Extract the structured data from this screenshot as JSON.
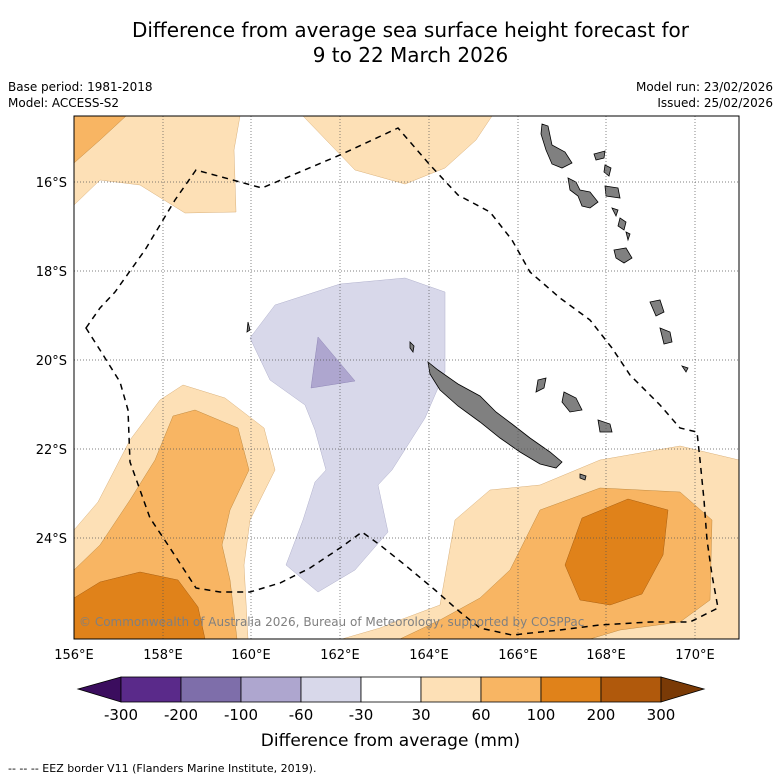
{
  "title_line1": "Difference from average sea surface height forecast for",
  "title_line2": "9 to 22 March 2026",
  "meta_left": {
    "base_period": "Base period: 1981-2018",
    "model": "Model: ACCESS-S2"
  },
  "meta_right": {
    "model_run": "Model run: 23/02/2026",
    "issued": "Issued: 25/02/2026"
  },
  "map": {
    "lon_ticks": [
      "156°E",
      "158°E",
      "160°E",
      "162°E",
      "164°E",
      "166°E",
      "168°E",
      "170°E"
    ],
    "lat_ticks": [
      "16°S",
      "18°S",
      "20°S",
      "22°S",
      "24°S"
    ],
    "copyright": "© Commonwealth of Australia 2026, Bureau of Meteorology, supported by COSPPac",
    "land_color": "#808080"
  },
  "colorbar": {
    "ticks": [
      "-300",
      "-200",
      "-100",
      "-60",
      "-30",
      "30",
      "60",
      "100",
      "200",
      "300"
    ],
    "colors": [
      "#3b0d5e",
      "#5a2a8a",
      "#7e6eaa",
      "#aea6cf",
      "#d8d8ea",
      "#ffffff",
      "#fde0b6",
      "#f8b563",
      "#e0821a",
      "#b0590c",
      "#7a3a06"
    ],
    "title": "Difference from average (mm)"
  },
  "footer": "--  --  -- EEZ border V11 (Flanders Marine Institute, 2019)."
}
